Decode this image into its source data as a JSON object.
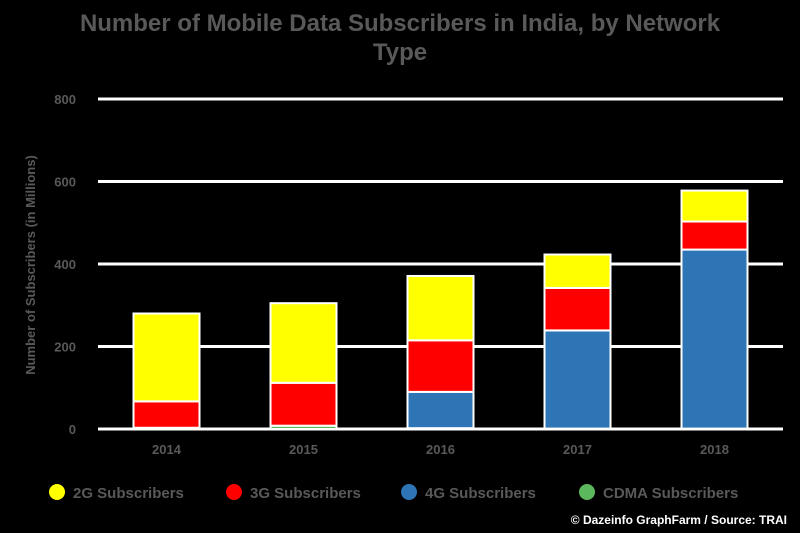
{
  "chart_data": {
    "type": "bar",
    "stacked": true,
    "title_lines": [
      "Number of Mobile Data Subscribers in India, by Network",
      "Type"
    ],
    "ylabel": "Number of Subscribers (in Millions)",
    "xlabel": "",
    "ylim": [
      0,
      800
    ],
    "yticks": [
      "0",
      "200",
      "400",
      "600",
      "800"
    ],
    "categories": [
      "2014",
      "2015",
      "2016",
      "2017",
      "2018"
    ],
    "series": [
      {
        "name": "CDMA Subscribers",
        "color": "#5cb85c",
        "values": [
          3,
          8,
          2,
          1,
          1
        ]
      },
      {
        "name": "4G Subscribers",
        "color": "#2e75b6",
        "values": [
          0,
          0,
          88,
          238,
          434
        ]
      },
      {
        "name": "3G Subscribers",
        "color": "#ff0000",
        "values": [
          64,
          104,
          125,
          103,
          68
        ]
      },
      {
        "name": "2G Subscribers",
        "color": "#ffff00",
        "values": [
          213,
          193,
          156,
          81,
          75
        ]
      }
    ],
    "legend": {
      "position": "bottom",
      "items": [
        "2G Subscribers",
        "3G Subscribers",
        "4G Subscribers",
        "CDMA Subscribers"
      ]
    },
    "grid": true
  },
  "credit": "© Dazeinfo GraphFarm / Source: TRAI"
}
